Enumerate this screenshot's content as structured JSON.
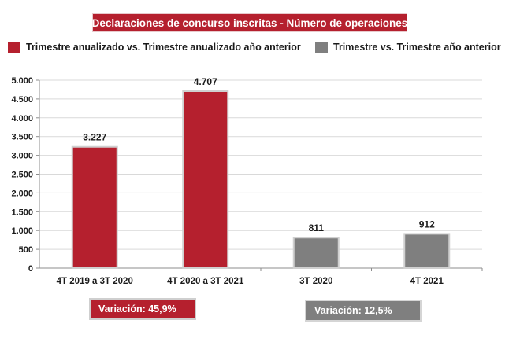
{
  "chart_data": {
    "type": "bar",
    "title": "Declaraciones de concurso inscritas - Número de operaciones",
    "categories": [
      "4T 2019 a 3T 2020",
      "4T 2020 a 3T 2021",
      "3T 2020",
      "4T 2021"
    ],
    "values": [
      3227,
      4707,
      811,
      912
    ],
    "value_labels": [
      "3.227",
      "4.707",
      "811",
      "912"
    ],
    "series_of_category": [
      0,
      0,
      1,
      1
    ],
    "series": [
      {
        "name": "Trimestre anualizado vs. Trimestre anualizado año anterior",
        "color": "#b5202e"
      },
      {
        "name": "Trimestre vs. Trimestre año anterior",
        "color": "#7f7f7f"
      }
    ],
    "ylim": [
      0,
      5000
    ],
    "yticks": [
      0,
      500,
      1000,
      1500,
      2000,
      2500,
      3000,
      3500,
      4000,
      4500,
      5000
    ],
    "ytick_labels": [
      "0",
      "500",
      "1.000",
      "1.500",
      "2.000",
      "2.500",
      "3.000",
      "3.500",
      "4.000",
      "4.500",
      "5.000"
    ],
    "grid": true,
    "legend_position": "top",
    "annotations": [
      {
        "text": "Variación:  45,9%",
        "color": "#b5202e"
      },
      {
        "text": "Variación: 12,5%",
        "color": "#7f7f7f"
      }
    ]
  }
}
